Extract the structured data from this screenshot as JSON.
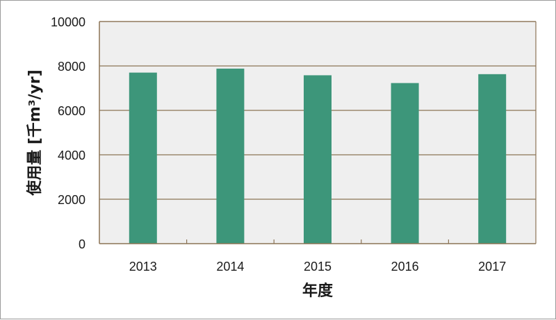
{
  "chart_data": {
    "type": "bar",
    "categories": [
      "2013",
      "2014",
      "2015",
      "2016",
      "2017"
    ],
    "values": [
      7700,
      7880,
      7580,
      7230,
      7630
    ],
    "title": "",
    "xlabel": "年度",
    "ylabel": "使用量 [千m³/yr]",
    "ylim": [
      0,
      10000
    ],
    "yticks": [
      "0",
      "2000",
      "4000",
      "6000",
      "8000",
      "10000"
    ],
    "grid": true,
    "legend": "none",
    "colors": {
      "bar": "#3d967a",
      "plot_background": "#efefef",
      "grid": "#8b7355",
      "axis": "#8b7355"
    }
  }
}
